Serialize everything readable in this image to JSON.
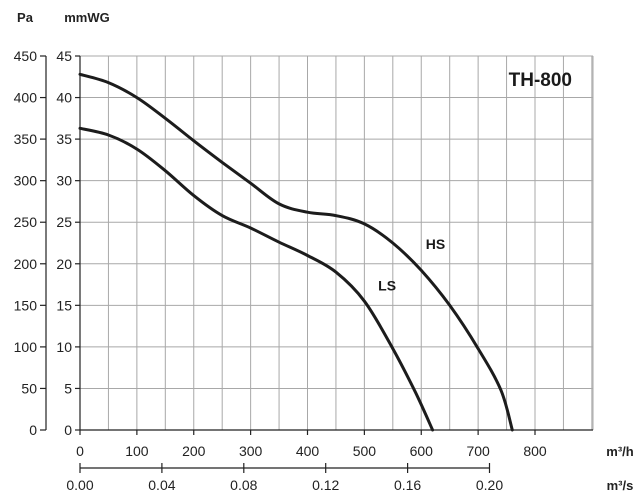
{
  "chart_data": {
    "type": "line",
    "title": "TH-800",
    "x_primary": {
      "unit": "m³/h",
      "range": [
        0,
        1000
      ],
      "ticks": [
        0,
        100,
        200,
        300,
        400,
        500,
        600,
        700,
        800
      ],
      "tick_labels": [
        "0",
        "100",
        "200",
        "300",
        "400",
        "500",
        "600",
        "700",
        "800"
      ]
    },
    "x_secondary": {
      "unit": "m³/s",
      "tick_labels": [
        "0.00",
        "0.04",
        "0.08",
        "0.12",
        "0.16",
        "0.20"
      ]
    },
    "y_primary": {
      "unit": "Pa",
      "range": [
        0,
        450
      ],
      "tick_labels": [
        "0",
        "50",
        "100",
        "150",
        "200",
        "250",
        "300",
        "350",
        "400",
        "450"
      ]
    },
    "y_secondary": {
      "unit": "mmWG",
      "range": [
        0,
        45
      ],
      "tick_labels": [
        "0",
        "5",
        "10",
        "15",
        "20",
        "25",
        "30",
        "35",
        "40",
        "45"
      ]
    },
    "grid": true,
    "series": [
      {
        "name": "HS",
        "x": [
          0,
          50,
          100,
          150,
          200,
          250,
          300,
          350,
          400,
          450,
          500,
          550,
          600,
          650,
          700,
          740,
          760
        ],
        "y": [
          428,
          418,
          400,
          375,
          348,
          322,
          297,
          272,
          262,
          258,
          248,
          225,
          192,
          150,
          98,
          48,
          0
        ]
      },
      {
        "name": "LS",
        "x": [
          0,
          50,
          100,
          150,
          200,
          250,
          300,
          350,
          400,
          450,
          500,
          550,
          590,
          620
        ],
        "y": [
          363,
          355,
          338,
          312,
          282,
          258,
          243,
          226,
          210,
          190,
          155,
          98,
          45,
          0
        ]
      }
    ]
  }
}
